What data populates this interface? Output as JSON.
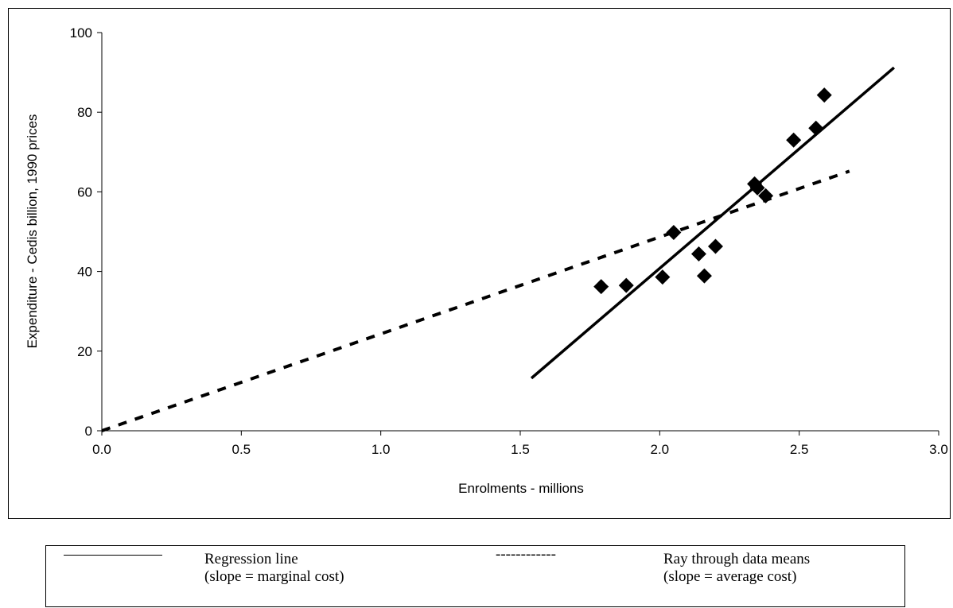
{
  "chart_data": {
    "type": "scatter",
    "title": "",
    "xlabel": "Enrolments - millions",
    "ylabel": "Expenditure - Cedis billion, 1990 prices",
    "xlim": [
      0.0,
      3.0
    ],
    "ylim": [
      0,
      100
    ],
    "xticks": [
      "0.0",
      "0.5",
      "1.0",
      "1.5",
      "2.0",
      "2.5",
      "3.0"
    ],
    "yticks": [
      "0",
      "20",
      "40",
      "60",
      "80",
      "100"
    ],
    "grid": false,
    "points": [
      {
        "x": 1.79,
        "y": 36.2
      },
      {
        "x": 1.88,
        "y": 36.5
      },
      {
        "x": 2.01,
        "y": 38.6
      },
      {
        "x": 2.05,
        "y": 49.8
      },
      {
        "x": 2.14,
        "y": 44.4
      },
      {
        "x": 2.16,
        "y": 38.9
      },
      {
        "x": 2.2,
        "y": 46.3
      },
      {
        "x": 2.34,
        "y": 62.0
      },
      {
        "x": 2.35,
        "y": 61.0
      },
      {
        "x": 2.38,
        "y": 59.0
      },
      {
        "x": 2.48,
        "y": 73.0
      },
      {
        "x": 2.56,
        "y": 76.0
      },
      {
        "x": 2.59,
        "y": 84.3
      }
    ],
    "lines": [
      {
        "style": "solid",
        "start": {
          "x": 1.54,
          "y": 13.2
        },
        "end": {
          "x": 2.84,
          "y": 91.2
        }
      },
      {
        "style": "dashed",
        "start": {
          "x": 0.0,
          "y": 0.0
        },
        "end": {
          "x": 2.68,
          "y": 65.2
        }
      }
    ]
  },
  "legend": {
    "solid_label_line1": "Regression line",
    "solid_label_line2": "(slope = marginal cost)",
    "dashed_glyph": "------------",
    "dashed_label_line1": "Ray through data means",
    "dashed_label_line2": "(slope = average cost)"
  }
}
